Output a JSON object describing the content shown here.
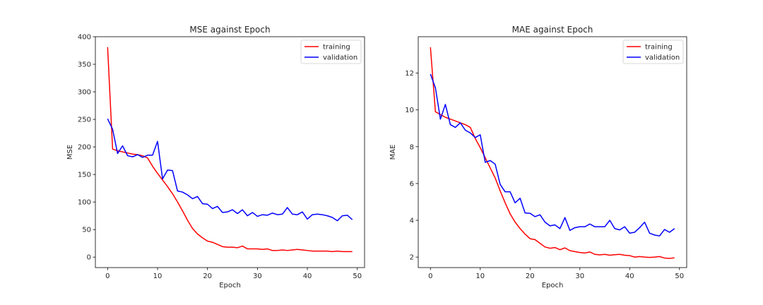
{
  "chart_data": [
    {
      "type": "line",
      "title": "MSE against Epoch",
      "xlabel": "Epoch",
      "ylabel": "MSE",
      "xlim": [
        -2.45,
        51.45
      ],
      "ylim": [
        -19,
        400
      ],
      "xticks": [
        0,
        10,
        20,
        30,
        40,
        50
      ],
      "yticks": [
        0,
        50,
        100,
        150,
        200,
        250,
        300,
        350,
        400
      ],
      "legend": "top-right",
      "grid": false,
      "x": [
        0,
        1,
        2,
        3,
        4,
        5,
        6,
        7,
        8,
        9,
        10,
        11,
        12,
        13,
        14,
        15,
        16,
        17,
        18,
        19,
        20,
        21,
        22,
        23,
        24,
        25,
        26,
        27,
        28,
        29,
        30,
        31,
        32,
        33,
        34,
        35,
        36,
        37,
        38,
        39,
        40,
        41,
        42,
        43,
        44,
        45,
        46,
        47,
        48,
        49
      ],
      "series": [
        {
          "name": "training",
          "color": "#ff0000",
          "values": [
            381,
            196,
            193,
            191,
            189,
            187,
            186,
            184,
            180,
            165,
            152,
            140,
            128,
            115,
            100,
            84,
            67,
            52,
            42,
            35,
            29,
            27,
            23,
            19,
            18,
            18,
            17,
            20,
            15,
            15,
            15,
            14,
            15,
            12,
            12,
            13,
            12,
            13,
            14,
            13,
            12,
            11,
            11,
            11,
            11,
            10,
            11,
            10,
            10,
            10
          ]
        },
        {
          "name": "validation",
          "color": "#0000ff",
          "values": [
            251,
            232,
            188,
            202,
            184,
            182,
            186,
            181,
            185,
            185,
            210,
            142,
            158,
            157,
            120,
            118,
            113,
            106,
            110,
            97,
            96,
            88,
            92,
            81,
            82,
            86,
            79,
            86,
            75,
            81,
            74,
            77,
            76,
            80,
            77,
            78,
            90,
            78,
            77,
            82,
            69,
            77,
            78,
            77,
            75,
            72,
            66,
            75,
            76,
            68
          ]
        }
      ]
    },
    {
      "type": "line",
      "title": "MAE against Epoch",
      "xlabel": "Epoch",
      "ylabel": "MAE",
      "xlim": [
        -2.45,
        51.45
      ],
      "ylim": [
        1.43,
        13.98
      ],
      "xticks": [
        0,
        10,
        20,
        30,
        40,
        50
      ],
      "yticks": [
        2,
        4,
        6,
        8,
        10,
        12
      ],
      "legend": "top-right",
      "grid": false,
      "x": [
        0,
        1,
        2,
        3,
        4,
        5,
        6,
        7,
        8,
        9,
        10,
        11,
        12,
        13,
        14,
        15,
        16,
        17,
        18,
        19,
        20,
        21,
        22,
        23,
        24,
        25,
        26,
        27,
        28,
        29,
        30,
        31,
        32,
        33,
        34,
        35,
        36,
        37,
        38,
        39,
        40,
        41,
        42,
        43,
        44,
        45,
        46,
        47,
        48,
        49
      ],
      "series": [
        {
          "name": "training",
          "color": "#ff0000",
          "values": [
            13.4,
            9.9,
            9.75,
            9.6,
            9.5,
            9.4,
            9.3,
            9.2,
            9.05,
            8.45,
            7.95,
            7.4,
            6.85,
            6.3,
            5.6,
            4.95,
            4.35,
            3.9,
            3.55,
            3.25,
            3.0,
            2.95,
            2.75,
            2.55,
            2.48,
            2.52,
            2.4,
            2.5,
            2.35,
            2.3,
            2.25,
            2.22,
            2.28,
            2.15,
            2.12,
            2.15,
            2.1,
            2.13,
            2.15,
            2.1,
            2.08,
            2.0,
            2.03,
            2.0,
            1.98,
            2.0,
            2.03,
            1.95,
            1.93,
            1.96
          ]
        },
        {
          "name": "validation",
          "color": "#0000ff",
          "values": [
            11.95,
            11.2,
            9.5,
            10.3,
            9.2,
            9.05,
            9.3,
            8.9,
            8.75,
            8.5,
            8.65,
            7.15,
            7.25,
            7.05,
            5.95,
            5.55,
            5.55,
            4.95,
            5.2,
            4.4,
            4.38,
            4.2,
            4.3,
            3.9,
            3.7,
            3.75,
            3.55,
            4.15,
            3.45,
            3.6,
            3.65,
            3.65,
            3.8,
            3.65,
            3.65,
            3.65,
            4.0,
            3.55,
            3.48,
            3.65,
            3.3,
            3.35,
            3.6,
            3.9,
            3.3,
            3.2,
            3.15,
            3.5,
            3.35,
            3.55
          ]
        }
      ]
    }
  ]
}
